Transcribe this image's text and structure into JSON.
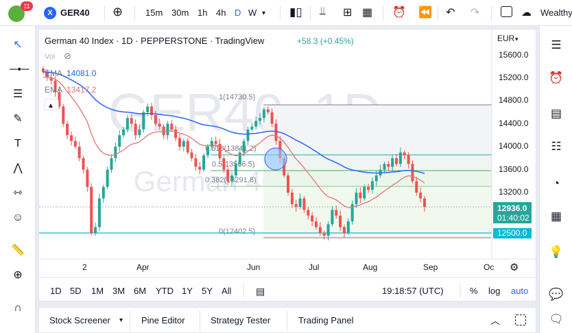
{
  "topbar": {
    "logo_badge": "11",
    "symbol_icon": "X",
    "symbol": "GER40",
    "intervals": [
      "15m",
      "30m",
      "1h",
      "4h",
      "D",
      "W"
    ],
    "active_interval": "D",
    "watchlist_label": "Wealthy"
  },
  "legend": {
    "title": "German 40 Index · 1D · PEPPERSTONE · TradingView",
    "change": "+58.3 (+0.45%)",
    "vol_label": "Vol",
    "ema1_label": "EMA",
    "ema1_value": "14081.0",
    "ema2_label": "EMA",
    "ema2_value": "13417.2"
  },
  "watermark": {
    "line1": "GER40, 1D",
    "line2": "German 40 Index"
  },
  "price_axis": {
    "currency": "EUR",
    "ticks": [
      "15600.0",
      "15200.0",
      "14800.0",
      "14400.0",
      "14000.0",
      "13600.0",
      "13200.0",
      "12500.0"
    ],
    "current_price": "12936.0",
    "countdown": "01:40:02",
    "level_label": "12500.0"
  },
  "time_axis": {
    "ticks": [
      "2",
      "Apr",
      "Jun",
      "Jul",
      "Aug",
      "Sep",
      "Oc"
    ]
  },
  "fib_labels": {
    "f1": "1(14730.5)",
    "f618": "0.618(13841.2)",
    "f5": "0.5(13566.5)",
    "f382": "0.382(13291.8)",
    "f0": "0(12402.5)"
  },
  "range_bar": {
    "ranges": [
      "1D",
      "5D",
      "1M",
      "3M",
      "6M",
      "YTD",
      "1Y",
      "5Y",
      "All"
    ],
    "clock": "19:18:57 (UTC)",
    "pct": "%",
    "log": "log",
    "auto": "auto"
  },
  "bottom_tabs": [
    "Stock Screener",
    "Pine Editor",
    "Strategy Tester",
    "Trading Panel"
  ],
  "colors": {
    "up": "#26a69a",
    "down": "#ef5350",
    "ema_long": "#2962ff",
    "ema_short": "#e57373",
    "accent": "#2962ff",
    "level": "#00bcd4"
  },
  "chart_data": {
    "type": "candlestick",
    "title": "German 40 Index · 1D · PEPPERSTONE · TradingView",
    "x_range": [
      "Feb",
      "Oct"
    ],
    "ylim": [
      12200,
      15800
    ],
    "closes": [
      15300,
      15200,
      15150,
      14950,
      14700,
      14400,
      14200,
      14100,
      14000,
      13800,
      13600,
      13300,
      12500,
      12600,
      13100,
      13300,
      13600,
      13800,
      14000,
      14200,
      14300,
      14500,
      14400,
      14200,
      14300,
      14600,
      14700,
      14550,
      14400,
      14350,
      14200,
      14400,
      14300,
      14150,
      14000,
      14100,
      13900,
      13800,
      13650,
      13600,
      13850,
      14000,
      14100,
      14050,
      13800,
      13600,
      13400,
      13500,
      13700,
      13900,
      14100,
      14300,
      14350,
      14450,
      14500,
      14650,
      14600,
      14400,
      14100,
      13800,
      13500,
      13200,
      13000,
      12950,
      13100,
      12900,
      12800,
      12700,
      12600,
      12500,
      12450,
      12650,
      12900,
      12800,
      12600,
      12500,
      12700,
      13000,
      13200,
      13100,
      13300,
      13250,
      13400,
      13500,
      13600,
      13700,
      13650,
      13800,
      13700,
      13900,
      13850,
      13700,
      13400,
      13200,
      13100,
      12950
    ],
    "ema_long": {
      "name": "EMA",
      "last": 14081.0
    },
    "ema_short": {
      "name": "EMA",
      "last": 13417.2
    },
    "fib_levels": [
      14730.5,
      13841.2,
      13566.5,
      13291.8,
      12402.5
    ],
    "horizontal_level": 12500.0,
    "last_price": 12936.0
  }
}
